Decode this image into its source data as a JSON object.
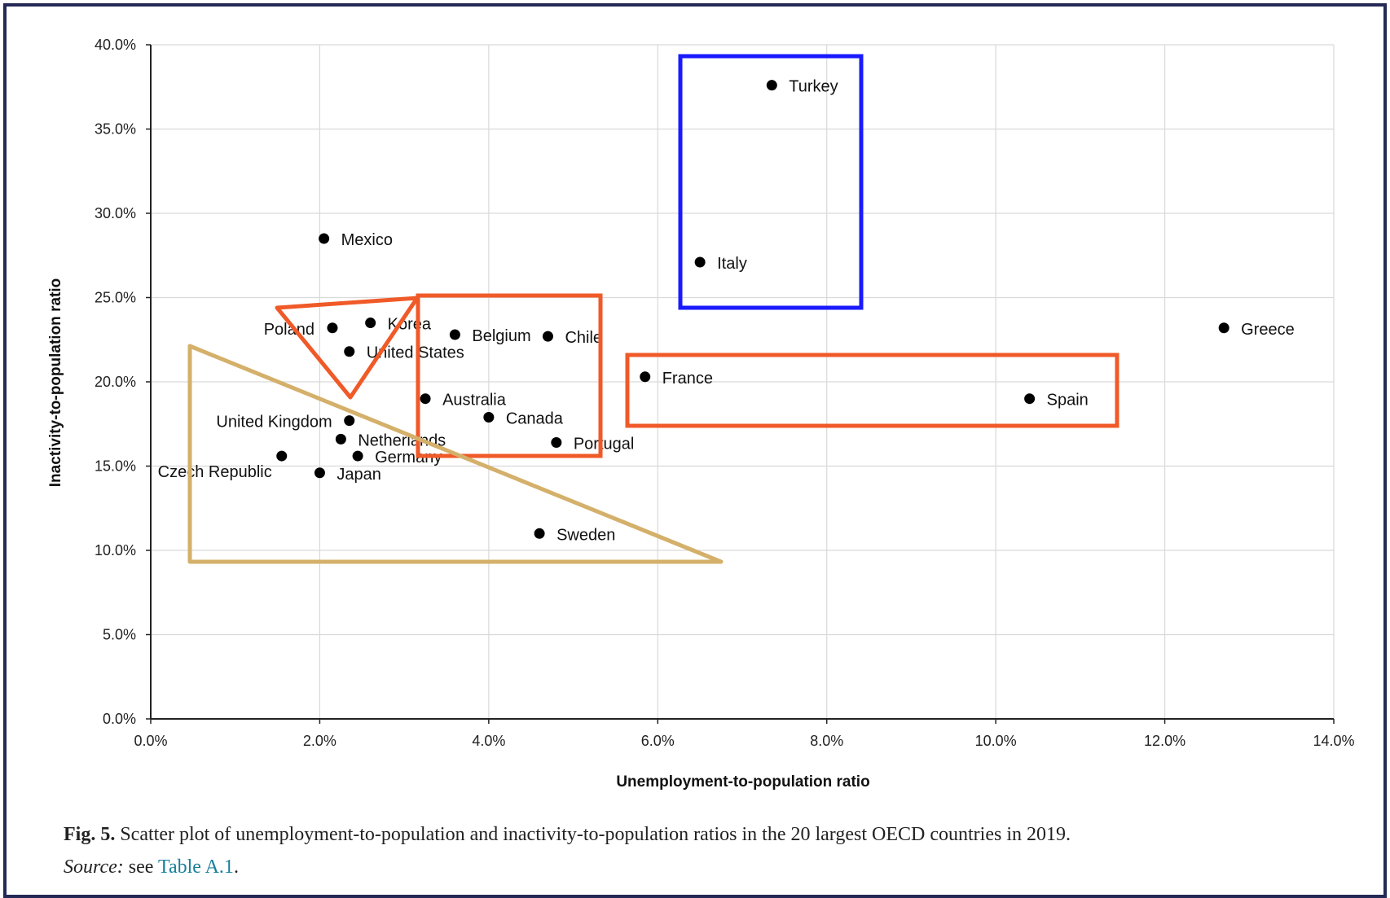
{
  "chart_data": {
    "type": "scatter",
    "xlabel": "Unemployment-to-population ratio",
    "ylabel": "Inactivity-to-population ratio",
    "xlim": [
      0,
      14
    ],
    "ylim": [
      0,
      40
    ],
    "x_ticks": [
      "0.0%",
      "2.0%",
      "4.0%",
      "6.0%",
      "8.0%",
      "10.0%",
      "12.0%",
      "14.0%"
    ],
    "y_ticks": [
      "0.0%",
      "5.0%",
      "10.0%",
      "15.0%",
      "20.0%",
      "25.0%",
      "30.0%",
      "35.0%",
      "40.0%"
    ],
    "grid": "vertical and horizontal gridlines",
    "point_color": "#000000",
    "points": [
      {
        "label": "Turkey",
        "x": 7.35,
        "y": 37.6
      },
      {
        "label": "Italy",
        "x": 6.5,
        "y": 27.1
      },
      {
        "label": "Mexico",
        "x": 2.05,
        "y": 28.5
      },
      {
        "label": "Greece",
        "x": 12.7,
        "y": 23.2
      },
      {
        "label": "Poland",
        "x": 2.15,
        "y": 23.2
      },
      {
        "label": "Korea",
        "x": 2.6,
        "y": 23.5
      },
      {
        "label": "Belgium",
        "x": 3.6,
        "y": 22.8
      },
      {
        "label": "Chile",
        "x": 4.7,
        "y": 22.7
      },
      {
        "label": "United States",
        "x": 2.35,
        "y": 21.8
      },
      {
        "label": "France",
        "x": 5.85,
        "y": 20.3
      },
      {
        "label": "Australia",
        "x": 3.25,
        "y": 19.0
      },
      {
        "label": "Spain",
        "x": 10.4,
        "y": 19.0
      },
      {
        "label": "Canada",
        "x": 4.0,
        "y": 17.9
      },
      {
        "label": "United Kingdom",
        "x": 2.35,
        "y": 17.7
      },
      {
        "label": "Netherlands",
        "x": 2.25,
        "y": 16.6
      },
      {
        "label": "Portugal",
        "x": 4.8,
        "y": 16.4
      },
      {
        "label": "Germany",
        "x": 2.45,
        "y": 15.6
      },
      {
        "label": "Czech Republic",
        "x": 1.55,
        "y": 15.6
      },
      {
        "label": "Japan",
        "x": 2.0,
        "y": 14.6
      },
      {
        "label": "Sweden",
        "x": 4.6,
        "y": 11.0
      }
    ],
    "annotation_colors": {
      "blue": "#1a1aff",
      "orange": "#f05a28",
      "tan": "#d4b06a"
    }
  },
  "caption": {
    "fig": "Fig. 5.",
    "text": " Scatter plot of unemployment-to-population and inactivity-to-population ratios in the 20 largest OECD countries in 2019.",
    "source_label": "Source:",
    "source_text": " see ",
    "source_ref": "Table A.1",
    "source_end": "."
  }
}
